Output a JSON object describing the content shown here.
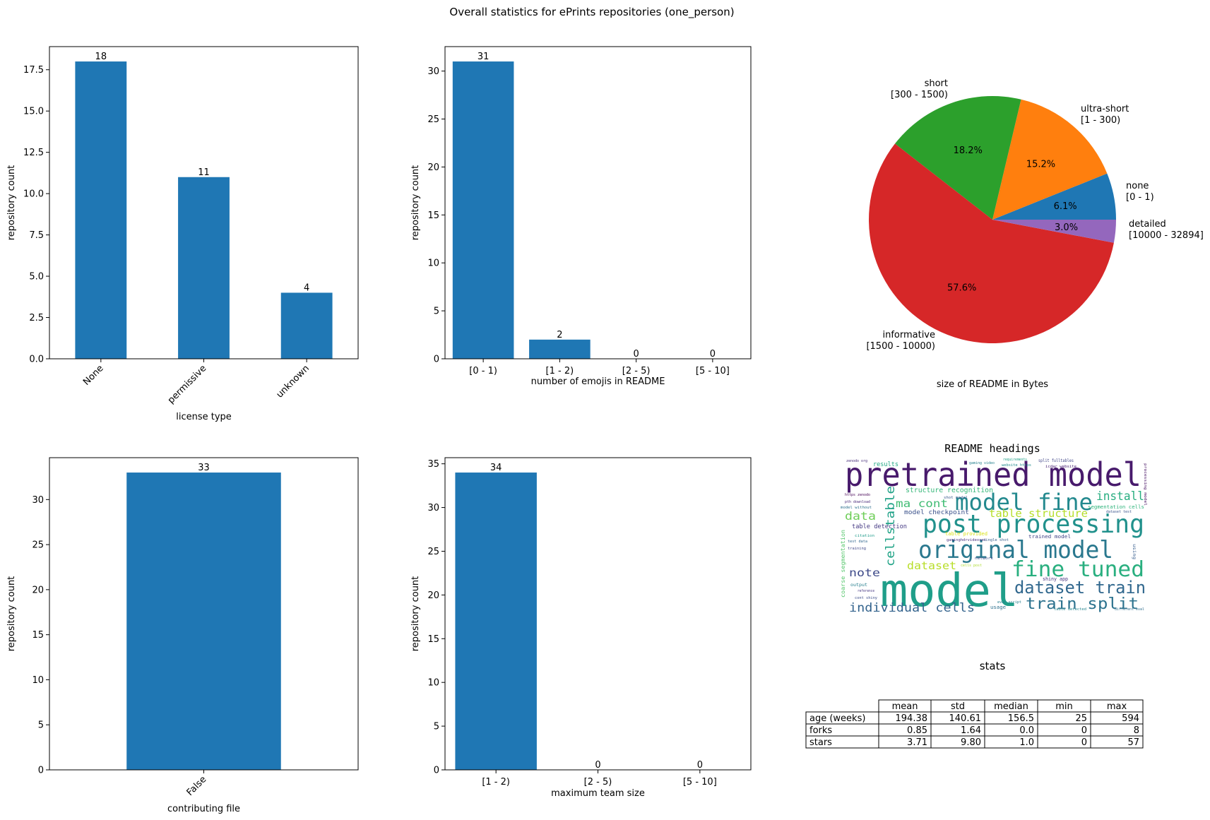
{
  "suptitle": "Overall statistics for ePrints repositories (one_person)",
  "colors": {
    "bar": "#1f77b4",
    "pie": [
      "#1f77b4",
      "#ff7f0e",
      "#2ca02c",
      "#d62728",
      "#9467bd"
    ]
  },
  "chart_data": [
    {
      "id": "license",
      "type": "bar",
      "categories": [
        "None",
        "permissive",
        "unknown"
      ],
      "values": [
        18,
        11,
        4
      ],
      "xlabel": "license type",
      "ylabel": "repository count",
      "ylim": [
        0,
        18.9
      ],
      "yticks": [
        "0.0",
        "2.5",
        "5.0",
        "7.5",
        "10.0",
        "12.5",
        "15.0",
        "17.5"
      ],
      "ytick_values": [
        0,
        2.5,
        5,
        7.5,
        10,
        12.5,
        15,
        17.5
      ],
      "xtick_rotation": 45,
      "bar_width": 0.5
    },
    {
      "id": "emojis",
      "type": "bar",
      "categories": [
        "[0 - 1)",
        "[1 - 2)",
        "[2 - 5)",
        "[5 - 10]"
      ],
      "values": [
        31,
        2,
        0,
        0
      ],
      "xlabel": "number of emojis in README",
      "ylabel": "repository count",
      "ylim": [
        0,
        32.55
      ],
      "yticks": [
        "0",
        "5",
        "10",
        "15",
        "20",
        "25",
        "30"
      ],
      "ytick_values": [
        0,
        5,
        10,
        15,
        20,
        25,
        30
      ],
      "xtick_rotation": 0,
      "bar_width": 0.8
    },
    {
      "id": "readme-size",
      "type": "pie",
      "labels": [
        "none\n[0 - 1)",
        "ultra-short\n[1 - 300)",
        "short\n[300 - 1500)",
        "informative\n[1500 - 10000)",
        "detailed\n[10000 - 32894]"
      ],
      "values": [
        6.1,
        15.2,
        18.2,
        57.6,
        3.0
      ],
      "pct_labels": [
        "6.1%",
        "15.2%",
        "18.2%",
        "57.6%",
        "3.0%"
      ],
      "xlabel": "size of README in Bytes"
    },
    {
      "id": "contributing",
      "type": "bar",
      "categories": [
        "False"
      ],
      "values": [
        33
      ],
      "xlabel": "contributing file",
      "ylabel": "repository count",
      "ylim": [
        0,
        34.65
      ],
      "yticks": [
        "0",
        "5",
        "10",
        "15",
        "20",
        "25",
        "30"
      ],
      "ytick_values": [
        0,
        5,
        10,
        15,
        20,
        25,
        30
      ],
      "xtick_rotation": 45,
      "bar_width": 0.5
    },
    {
      "id": "team-size",
      "type": "bar",
      "categories": [
        "[1 - 2)",
        "[2 - 5)",
        "[5 - 10]"
      ],
      "values": [
        34,
        0,
        0
      ],
      "xlabel": "maximum team size",
      "ylabel": "repository count",
      "ylim": [
        0,
        35.7
      ],
      "yticks": [
        "0",
        "5",
        "10",
        "15",
        "20",
        "25",
        "30",
        "35"
      ],
      "ytick_values": [
        0,
        5,
        10,
        15,
        20,
        25,
        30,
        35
      ],
      "xtick_rotation": 0,
      "bar_width": 0.8
    },
    {
      "id": "stats",
      "type": "table",
      "title": "stats",
      "columns": [
        "mean",
        "std",
        "median",
        "min",
        "max"
      ],
      "rows": [
        {
          "label": "age (weeks)",
          "cells": [
            "194.38",
            "140.61",
            "156.5",
            "25",
            "594"
          ]
        },
        {
          "label": "forks",
          "cells": [
            "0.85",
            "1.64",
            "0.0",
            "0",
            "8"
          ]
        },
        {
          "label": "stars",
          "cells": [
            "3.71",
            "9.80",
            "1.0",
            "0",
            "57"
          ]
        }
      ]
    }
  ],
  "wordcloud": {
    "title": "README headings",
    "words": [
      {
        "text": "pretrained model",
        "color": "#481a6c"
      },
      {
        "text": "model fine",
        "color": "#23898e"
      },
      {
        "text": "post processing",
        "color": "#21918c"
      },
      {
        "text": "original model",
        "color": "#2a788e"
      },
      {
        "text": "fine tuned",
        "color": "#29af7f"
      },
      {
        "text": "model",
        "color": "#1f9e89"
      },
      {
        "text": "dataset train",
        "color": "#31688e"
      },
      {
        "text": "train split",
        "color": "#2c728e"
      },
      {
        "text": "individual cells",
        "color": "#33638d"
      },
      {
        "text": "cells",
        "color": "#20a386"
      },
      {
        "text": "table",
        "color": "#1fa187"
      },
      {
        "text": "ma cont",
        "color": "#3fbc73"
      },
      {
        "text": "install",
        "color": "#28ae80"
      },
      {
        "text": "data",
        "color": "#6ece58"
      },
      {
        "text": "table structure",
        "color": "#b5de2b"
      },
      {
        "text": "dataset",
        "color": "#b8de29"
      },
      {
        "text": "note",
        "color": "#3e4a89"
      },
      {
        "text": "structure recognition",
        "color": "#35b779"
      },
      {
        "text": "results",
        "color": "#22a884"
      },
      {
        "text": "segmentation cells",
        "color": "#2fb47c"
      },
      {
        "text": "model checkpoint",
        "color": "#3b528b"
      },
      {
        "text": "table detection",
        "color": "#443983"
      },
      {
        "text": "trained model",
        "color": "#414487"
      },
      {
        "text": "shiny app",
        "color": "#46337f"
      },
      {
        "text": "usage",
        "color": "#2d708e"
      },
      {
        "text": "coarse segmentation",
        "color": "#52c569"
      },
      {
        "text": "table provided",
        "color": "#d8e219"
      },
      {
        "text": "output",
        "color": "#277f8e"
      },
      {
        "text": "split fulltables",
        "color": "#404688"
      },
      {
        "text": "requirements",
        "color": "#1fa088"
      },
      {
        "text": "zenodo org",
        "color": "#472d7b"
      },
      {
        "text": "dataset test",
        "color": "#3a548c"
      },
      {
        "text": "https zenodo",
        "color": "#440154"
      },
      {
        "text": "pth download",
        "color": "#482878"
      },
      {
        "text": "gaming video",
        "color": "#26828e"
      },
      {
        "text": "training",
        "color": "#3f4889"
      },
      {
        "text": "different eval",
        "color": "#2e6e8e"
      },
      {
        "text": "table detected",
        "color": "#25858e"
      },
      {
        "text": "test data",
        "color": "#31678e"
      },
      {
        "text": "reference",
        "color": "#453581"
      },
      {
        "text": "cont shiny",
        "color": "#3d4e8a"
      },
      {
        "text": "processing model",
        "color": "#471164"
      },
      {
        "text": "citation",
        "color": "#1e9b8a"
      },
      {
        "text": "using",
        "color": "#365c8d"
      },
      {
        "text": "model without",
        "color": "#2d718e"
      },
      {
        "text": "icdar website",
        "color": "#482173"
      },
      {
        "text": "website https",
        "color": "#238a8d"
      },
      {
        "text": "single shot",
        "color": "#355f8d"
      },
      {
        "text": "cells post",
        "color": "#addc30"
      },
      {
        "text": "eval script",
        "color": "#277e8e"
      },
      {
        "text": "network",
        "color": "#3c4f8a"
      },
      {
        "text": "gaminghdrvideoset",
        "color": "#46307e"
      },
      {
        "text": "shot model",
        "color": "#38598c"
      }
    ]
  }
}
